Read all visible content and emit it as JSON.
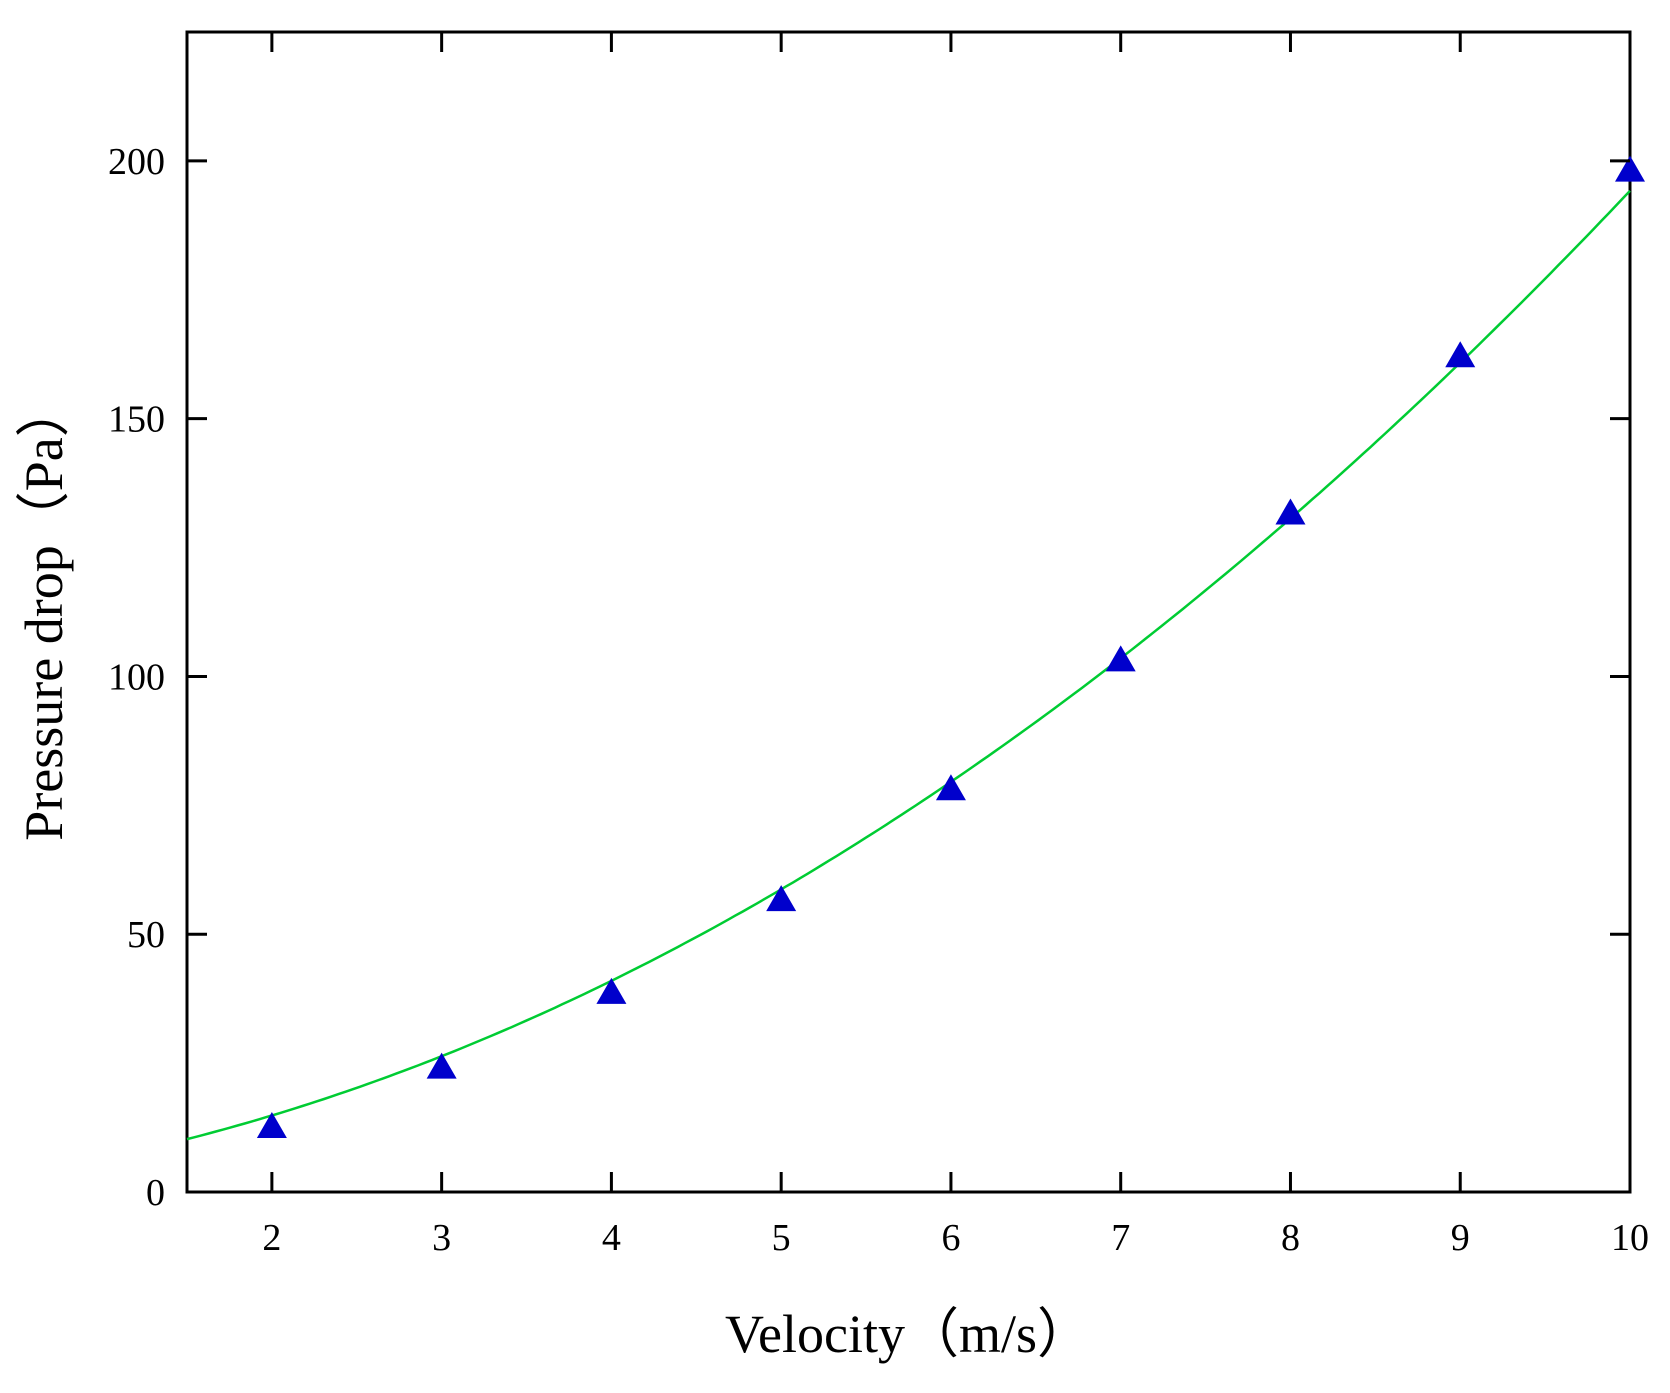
{
  "chart_data": {
    "type": "scatter",
    "title": "",
    "xlabel": "Velocity（m/s）",
    "ylabel": "Pressure drop（Pa）",
    "xlim": [
      1.5,
      10
    ],
    "ylim": [
      0,
      225
    ],
    "x_ticks": [
      2,
      3,
      4,
      5,
      6,
      7,
      8,
      9,
      10
    ],
    "y_ticks": [
      0,
      50,
      100,
      150,
      200
    ],
    "grid": false,
    "legend": "none",
    "series": [
      {
        "type": "scatter",
        "marker": "triangle",
        "color": "#0000cc",
        "x": [
          2,
          3,
          4,
          5,
          6,
          7,
          8,
          9,
          10
        ],
        "y": [
          12.5,
          24,
          38.5,
          56.5,
          78,
          103,
          131.5,
          162,
          198
        ]
      },
      {
        "type": "line",
        "color": "#00cc33",
        "fit": "quadratic",
        "x_range": [
          1.5,
          10
        ],
        "coefficients": [
          1.2,
          3.7,
          1.56
        ]
      }
    ]
  }
}
